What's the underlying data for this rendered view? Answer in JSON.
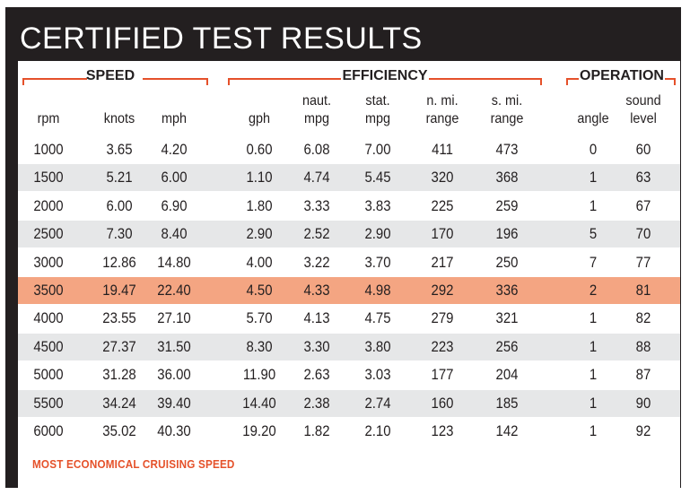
{
  "title": "CERTIFIED TEST RESULTS",
  "accent_color": "#e5512a",
  "highlight_color": "#f4a582",
  "groups": {
    "speed": "SPEED",
    "efficiency": "EFFICIENCY",
    "operation": "OPERATION"
  },
  "headers": {
    "rpm": [
      "",
      "rpm"
    ],
    "knots": [
      "",
      "knots"
    ],
    "mph": [
      "",
      "mph"
    ],
    "gph": [
      "",
      "gph"
    ],
    "naut_mpg": [
      "naut.",
      "mpg"
    ],
    "stat_mpg": [
      "stat.",
      "mpg"
    ],
    "n_mi_range": [
      "n. mi.",
      "range"
    ],
    "s_mi_range": [
      "s. mi.",
      "range"
    ],
    "angle": [
      "",
      "angle"
    ],
    "sound_level": [
      "sound",
      "level"
    ]
  },
  "rows": [
    [
      "1000",
      "3.65",
      "4.20",
      "0.60",
      "6.08",
      "7.00",
      "411",
      "473",
      "0",
      "60"
    ],
    [
      "1500",
      "5.21",
      "6.00",
      "1.10",
      "4.74",
      "5.45",
      "320",
      "368",
      "1",
      "63"
    ],
    [
      "2000",
      "6.00",
      "6.90",
      "1.80",
      "3.33",
      "3.83",
      "225",
      "259",
      "1",
      "67"
    ],
    [
      "2500",
      "7.30",
      "8.40",
      "2.90",
      "2.52",
      "2.90",
      "170",
      "196",
      "5",
      "70"
    ],
    [
      "3000",
      "12.86",
      "14.80",
      "4.00",
      "3.22",
      "3.70",
      "217",
      "250",
      "7",
      "77"
    ],
    [
      "3500",
      "19.47",
      "22.40",
      "4.50",
      "4.33",
      "4.98",
      "292",
      "336",
      "2",
      "81"
    ],
    [
      "4000",
      "23.55",
      "27.10",
      "5.70",
      "4.13",
      "4.75",
      "279",
      "321",
      "1",
      "82"
    ],
    [
      "4500",
      "27.37",
      "31.50",
      "8.30",
      "3.30",
      "3.80",
      "223",
      "256",
      "1",
      "88"
    ],
    [
      "5000",
      "31.28",
      "36.00",
      "11.90",
      "2.63",
      "3.03",
      "177",
      "204",
      "1",
      "87"
    ],
    [
      "5500",
      "34.24",
      "39.40",
      "14.40",
      "2.38",
      "2.74",
      "160",
      "185",
      "1",
      "90"
    ],
    [
      "6000",
      "35.02",
      "40.30",
      "19.20",
      "1.82",
      "2.10",
      "123",
      "142",
      "1",
      "92"
    ]
  ],
  "highlight_row": 5,
  "footnote": "MOST ECONOMICAL CRUISING SPEED"
}
